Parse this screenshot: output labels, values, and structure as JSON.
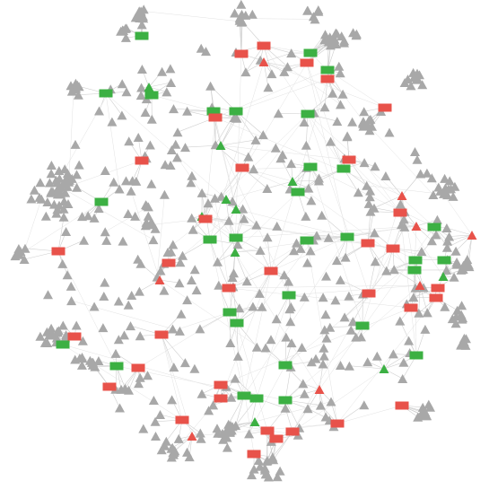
{
  "colors": {
    "background": "#ffffff",
    "edge": "#cfcfcf",
    "triangle_default": "#a8a8a8",
    "rect_green": "#3cb043",
    "rect_red": "#e8524a",
    "triangle_green": "#3cb043",
    "triangle_red": "#e8524a"
  },
  "legend": "none",
  "node_shapes": {
    "rectangle": "rect",
    "triangle": "triangle"
  }
}
